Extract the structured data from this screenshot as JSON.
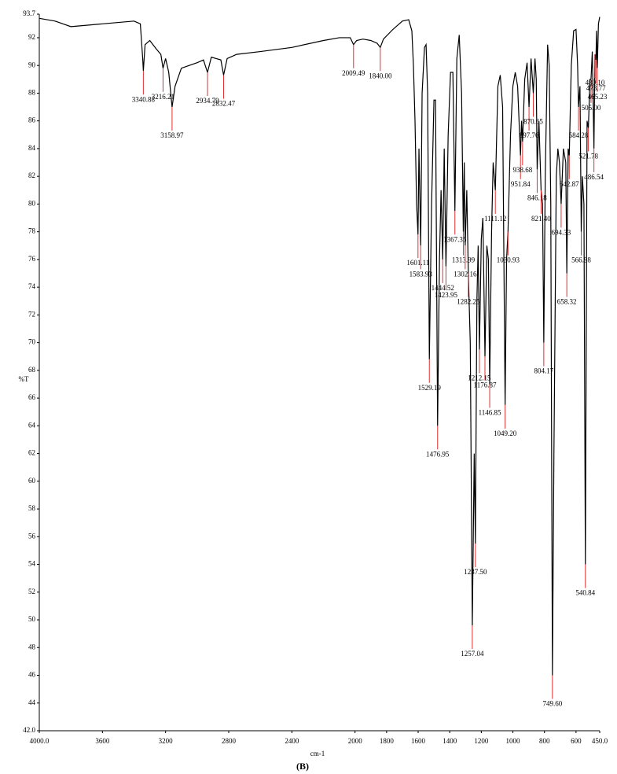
{
  "chart_data": {
    "type": "line",
    "x_label": "cm-1",
    "y_label": "%T",
    "caption": "(B)",
    "xlim": [
      4000,
      450
    ],
    "ylim": [
      42,
      93.7
    ],
    "xticks": [
      {
        "value": 4000,
        "label": "4000.0"
      },
      3600,
      3200,
      2800,
      2400,
      2000,
      1800,
      1600,
      1400,
      1200,
      1000,
      800,
      600,
      {
        "value": 450,
        "label": "450.0"
      }
    ],
    "yticks": [
      {
        "value": 42,
        "label": "42.0"
      },
      44,
      46,
      48,
      50,
      52,
      54,
      56,
      58,
      60,
      62,
      64,
      66,
      68,
      70,
      72,
      74,
      76,
      78,
      80,
      82,
      84,
      86,
      88,
      90,
      92,
      93.7
    ],
    "color": "#000000",
    "annotation_color": "#e03030",
    "x": [
      4000,
      3900,
      3800,
      3700,
      3600,
      3500,
      3400,
      3360,
      3345,
      3340.88,
      3330,
      3300,
      3260,
      3230,
      3216.21,
      3200,
      3180,
      3158.97,
      3140,
      3100,
      3050,
      3000,
      2960,
      2934.79,
      2910,
      2880,
      2850,
      2832.47,
      2810,
      2750,
      2600,
      2400,
      2200,
      2100,
      2030,
      2009.49,
      1990,
      1950,
      1900,
      1860,
      1840,
      1820,
      1760,
      1700,
      1660,
      1640,
      1630,
      1620,
      1610,
      1601.11,
      1595,
      1583.93,
      1575,
      1560,
      1550,
      1540,
      1529.19,
      1515,
      1500,
      1490,
      1476.95,
      1465,
      1455,
      1444.52,
      1435,
      1423.95,
      1410,
      1395,
      1380,
      1367.35,
      1355,
      1340,
      1325,
      1313.99,
      1308,
      1302.16,
      1292,
      1282.25,
      1270,
      1257.04,
      1245,
      1237.5,
      1228,
      1220,
      1212.15,
      1200,
      1190,
      1176.87,
      1165,
      1155,
      1146.85,
      1135,
      1125,
      1111.12,
      1095,
      1080,
      1065,
      1049.2,
      1040,
      1030.93,
      1015,
      1000,
      985,
      970,
      951.84,
      945,
      938.68,
      925,
      910,
      897.76,
      885,
      870.65,
      860,
      852,
      846.18,
      835,
      821.4,
      812,
      804.17,
      795,
      780,
      770,
      760,
      749.6,
      740,
      725,
      715,
      705,
      694.33,
      680,
      665,
      658.32,
      650,
      642.87,
      630,
      615,
      600,
      590,
      584.28,
      575,
      566.98,
      560,
      550,
      540.84,
      530,
      521.78,
      512,
      505,
      497,
      486.54,
      480.1,
      473.77,
      470,
      465.23,
      458,
      450
    ],
    "values": [
      93.4,
      93.2,
      92.8,
      92.9,
      93.0,
      93.1,
      93.2,
      93.0,
      90.5,
      89.6,
      91.5,
      91.8,
      91.2,
      90.8,
      89.8,
      90.5,
      89.5,
      87.0,
      88.5,
      89.8,
      90.0,
      90.2,
      90.4,
      89.5,
      90.6,
      90.5,
      90.4,
      89.3,
      90.5,
      90.8,
      91.0,
      91.3,
      91.8,
      92.0,
      92.0,
      91.5,
      91.8,
      91.9,
      91.8,
      91.6,
      91.3,
      91.9,
      92.6,
      93.2,
      93.3,
      92.5,
      90.0,
      86,
      80,
      77.8,
      84,
      77.0,
      88,
      91.3,
      91.5,
      88,
      68.8,
      80,
      87.5,
      87.5,
      64.0,
      76,
      81,
      76,
      84,
      75.5,
      85,
      89.5,
      89.5,
      79.5,
      90.5,
      92.2,
      88,
      78,
      83,
      77,
      81,
      75,
      70,
      49.6,
      62,
      55.5,
      73,
      77,
      69.5,
      77.5,
      79,
      69,
      77,
      76,
      67,
      78,
      83,
      81,
      88.5,
      89.3,
      87,
      65.5,
      76,
      78,
      85,
      88.5,
      89.5,
      88.5,
      83.5,
      86,
      84.5,
      89,
      90.2,
      87,
      90.5,
      88,
      90.5,
      89,
      82.5,
      86,
      81,
      80,
      70,
      82,
      91.5,
      90,
      80,
      46,
      62,
      82,
      84,
      83,
      80,
      84,
      83,
      75,
      84,
      83.5,
      90,
      92.5,
      92.6,
      90,
      87,
      88.5,
      78,
      82,
      80,
      54,
      86,
      85.5,
      89,
      89,
      91,
      84,
      90.8,
      90.4,
      92.5,
      89.8,
      93,
      93.5
    ],
    "annotations": [
      {
        "x": 3340.88,
        "y": 89.6,
        "label": "3340.88"
      },
      {
        "x": 3216.21,
        "y": 89.8,
        "label": "3216.21"
      },
      {
        "x": 3158.97,
        "y": 87.0,
        "label": "3158.97"
      },
      {
        "x": 2934.79,
        "y": 89.5,
        "label": "2934.79"
      },
      {
        "x": 2832.47,
        "y": 89.3,
        "label": "2832.47"
      },
      {
        "x": 2009.49,
        "y": 91.5,
        "label": "2009.49"
      },
      {
        "x": 1840,
        "y": 91.3,
        "label": "1840.00"
      },
      {
        "x": 1601.11,
        "y": 77.8,
        "label": "1601.11"
      },
      {
        "x": 1583.93,
        "y": 77.0,
        "label": "1583.93"
      },
      {
        "x": 1529.19,
        "y": 68.8,
        "label": "1529.19"
      },
      {
        "x": 1476.95,
        "y": 64.0,
        "label": "1476.95"
      },
      {
        "x": 1444.52,
        "y": 76,
        "label": "1444.52"
      },
      {
        "x": 1423.95,
        "y": 75.5,
        "label": "1423.95"
      },
      {
        "x": 1367.35,
        "y": 79.5,
        "label": "1367.35"
      },
      {
        "x": 1313.99,
        "y": 78,
        "label": "1313.99"
      },
      {
        "x": 1302.16,
        "y": 77,
        "label": "1302.16"
      },
      {
        "x": 1282.25,
        "y": 75,
        "label": "1282.25"
      },
      {
        "x": 1257.04,
        "y": 49.6,
        "label": "1257.04"
      },
      {
        "x": 1237.5,
        "y": 55.5,
        "label": "1237.50"
      },
      {
        "x": 1212.15,
        "y": 69.5,
        "label": "1212.15"
      },
      {
        "x": 1176.87,
        "y": 69,
        "label": "1176.87"
      },
      {
        "x": 1146.85,
        "y": 67,
        "label": "1146.85"
      },
      {
        "x": 1111.12,
        "y": 81,
        "label": "1111.12"
      },
      {
        "x": 1049.2,
        "y": 65.5,
        "label": "1049.20"
      },
      {
        "x": 1030.93,
        "y": 78,
        "label": "1030.93"
      },
      {
        "x": 951.84,
        "y": 83.5,
        "label": "951.84"
      },
      {
        "x": 938.68,
        "y": 84.5,
        "label": "938.68"
      },
      {
        "x": 897.76,
        "y": 87,
        "label": "897.76"
      },
      {
        "x": 870.65,
        "y": 88,
        "label": "870.65"
      },
      {
        "x": 846.18,
        "y": 82.5,
        "label": "846.18"
      },
      {
        "x": 821.4,
        "y": 81,
        "label": "821.40"
      },
      {
        "x": 804.17,
        "y": 70,
        "label": "804.17"
      },
      {
        "x": 749.6,
        "y": 46,
        "label": "749.60"
      },
      {
        "x": 694.33,
        "y": 80,
        "label": "694.33"
      },
      {
        "x": 658.32,
        "y": 75,
        "label": "658.32"
      },
      {
        "x": 642.87,
        "y": 83.5,
        "label": "642.87"
      },
      {
        "x": 584.28,
        "y": 87,
        "label": "584.28"
      },
      {
        "x": 566.98,
        "y": 78,
        "label": "566.98"
      },
      {
        "x": 540.84,
        "y": 54,
        "label": "540.84"
      },
      {
        "x": 521.78,
        "y": 85.5,
        "label": "521.78"
      },
      {
        "x": 505,
        "y": 89,
        "label": "505.00"
      },
      {
        "x": 486.54,
        "y": 84,
        "label": "486.54"
      },
      {
        "x": 480.1,
        "y": 90.8,
        "label": "480.10"
      },
      {
        "x": 473.77,
        "y": 90.4,
        "label": "473.77"
      },
      {
        "x": 465.23,
        "y": 89.8,
        "label": "465.23"
      }
    ]
  }
}
